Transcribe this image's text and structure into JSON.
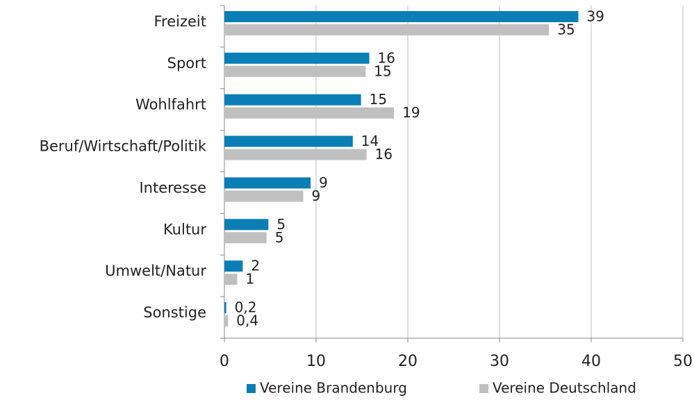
{
  "chart_data": {
    "type": "bar",
    "orientation": "horizontal",
    "categories": [
      "Freizeit",
      "Sport",
      "Wohlfahrt",
      "Beruf/Wirtschaft/Politik",
      "Interesse",
      "Kultur",
      "Umwelt/Natur",
      "Sonstige"
    ],
    "series": [
      {
        "name": "Vereine Brandenburg",
        "color": "#0a7fb5",
        "values": [
          38.6,
          15.8,
          14.9,
          14.0,
          9.4,
          4.8,
          2.0,
          0.2
        ],
        "value_labels": [
          "39",
          "16",
          "15",
          "14",
          "9",
          "5",
          "2",
          "0,2"
        ]
      },
      {
        "name": "Vereine Deutschland",
        "color": "#c0c0c0",
        "values": [
          35.4,
          15.4,
          18.5,
          15.5,
          8.6,
          4.6,
          1.4,
          0.4
        ],
        "value_labels": [
          "35",
          "15",
          "19",
          "16",
          "9",
          "5",
          "1",
          "0,4"
        ]
      }
    ],
    "xlim": [
      0,
      50
    ],
    "xticks": [
      0,
      10,
      20,
      30,
      40,
      50
    ],
    "grid": true,
    "legend": "bottom"
  }
}
